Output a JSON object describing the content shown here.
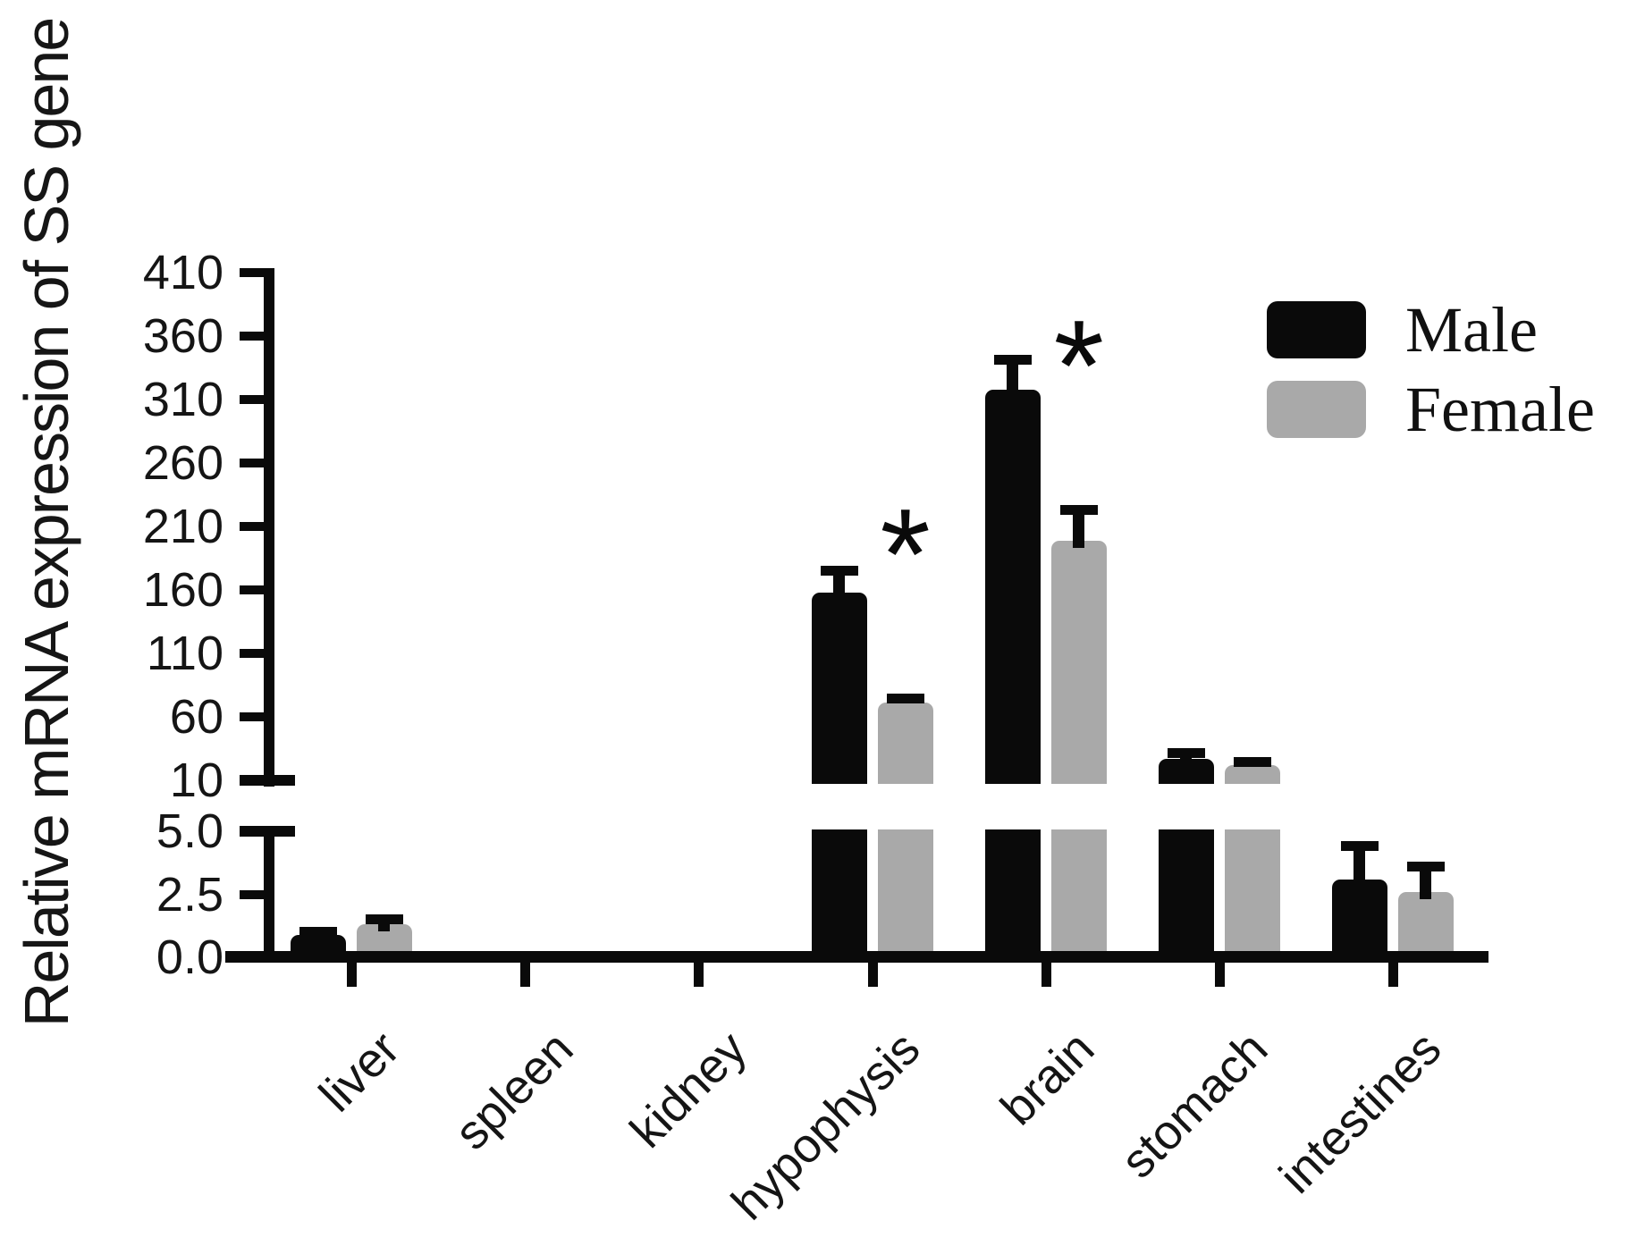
{
  "figure": {
    "background": "#ffffff",
    "colors": {
      "male": "#0a0a0a",
      "female": "#a9a9a9",
      "axis": "#0a0a0a"
    }
  },
  "chart_data": {
    "type": "bar",
    "title": "",
    "xlabel": "",
    "ylabel": "Relative mRNA expression of SS gene",
    "categories": [
      "liver",
      "spleen",
      "kidney",
      "hypophysis",
      "brain",
      "stomach",
      "intestines"
    ],
    "series": [
      {
        "name": "Male",
        "color": "#0a0a0a",
        "values": [
          0.9,
          0,
          0,
          158,
          318,
          27,
          3.1
        ],
        "sem": [
          0.2,
          0,
          0,
          19,
          25,
          6,
          1.4
        ]
      },
      {
        "name": "Female",
        "color": "#a9a9a9",
        "values": [
          1.3,
          0,
          0,
          71,
          199,
          22,
          2.6
        ],
        "sem": [
          0.3,
          0,
          0,
          5,
          26,
          4,
          1.1
        ]
      }
    ],
    "significance": [
      {
        "category": "hypophysis",
        "marker": "*"
      },
      {
        "category": "brain",
        "marker": "*"
      }
    ],
    "axis_break": {
      "lower_range": [
        0,
        5
      ],
      "upper_range": [
        10,
        410
      ]
    },
    "y_ticks_lower": [
      {
        "label": "0.0",
        "value": 0
      },
      {
        "label": "2.5",
        "value": 2.5
      },
      {
        "label": "5.0",
        "value": 5
      }
    ],
    "y_ticks_upper": [
      {
        "label": "10",
        "value": 10
      },
      {
        "label": "60",
        "value": 60
      },
      {
        "label": "110",
        "value": 110
      },
      {
        "label": "160",
        "value": 160
      },
      {
        "label": "210",
        "value": 210
      },
      {
        "label": "260",
        "value": 260
      },
      {
        "label": "310",
        "value": 310
      },
      {
        "label": "360",
        "value": 360
      },
      {
        "label": "410",
        "value": 410
      }
    ],
    "legend": {
      "position": "top-right",
      "entries": [
        "Male",
        "Female"
      ]
    },
    "grid": false
  }
}
